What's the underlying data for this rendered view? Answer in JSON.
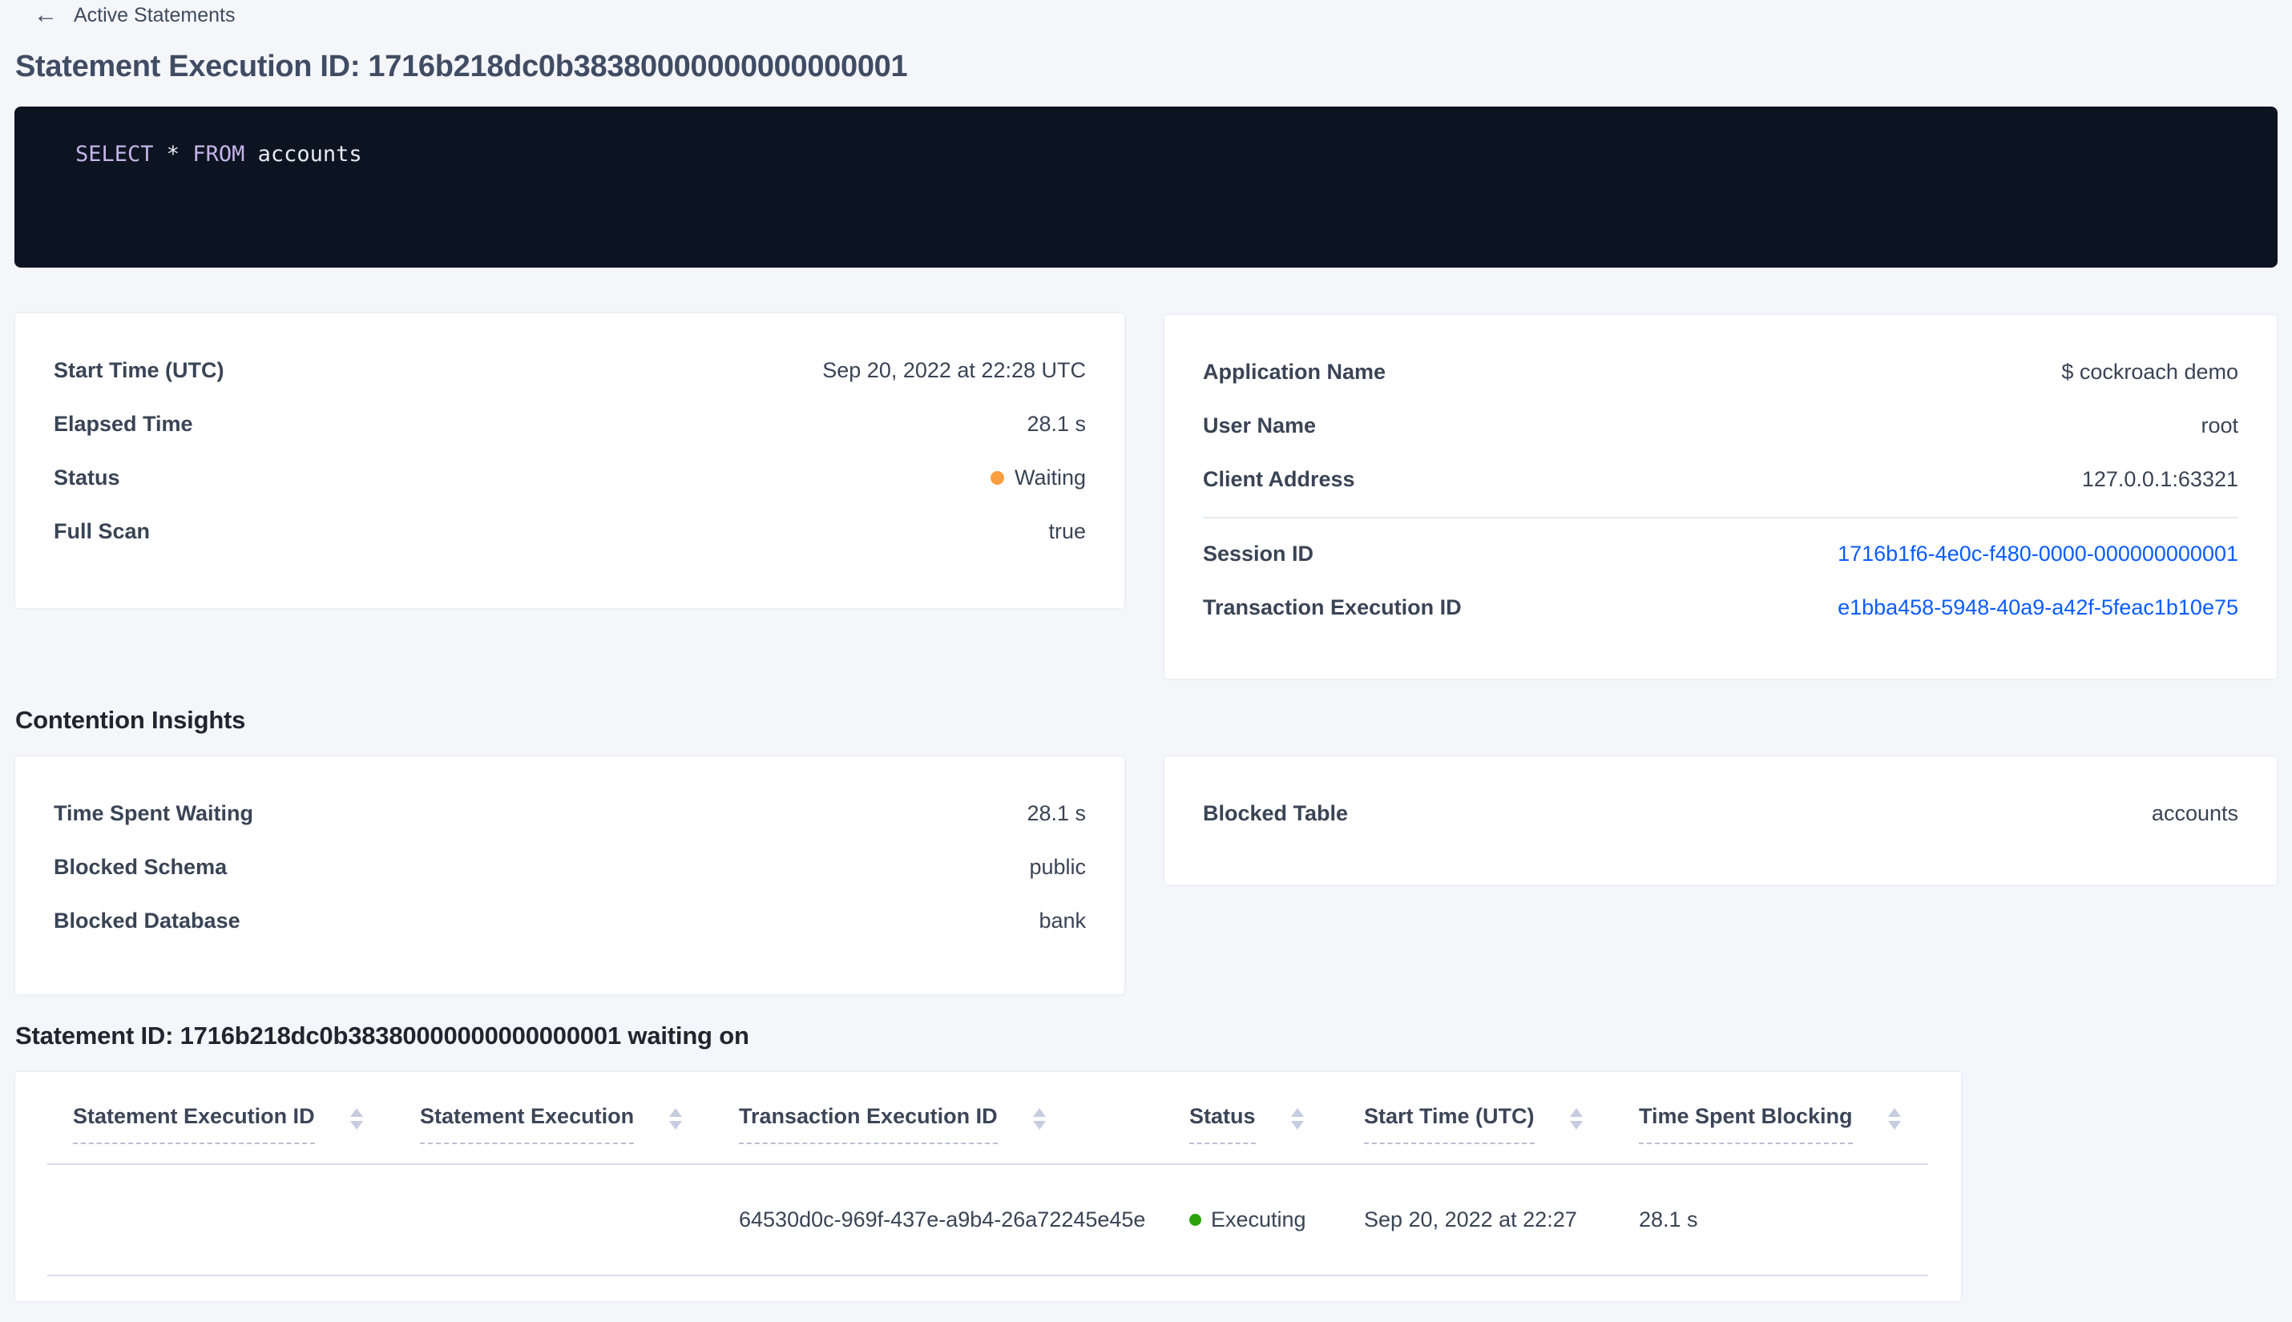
{
  "breadcrumb": {
    "back_label": "Active Statements"
  },
  "page": {
    "title": "Statement Execution ID: 1716b218dc0b38380000000000000001"
  },
  "sql": {
    "select": "SELECT",
    "star": " * ",
    "from": "FROM",
    "table": " accounts"
  },
  "execution_details": {
    "rows": [
      {
        "label": "Start Time (UTC)",
        "value": "Sep 20, 2022 at 22:28 UTC"
      },
      {
        "label": "Elapsed Time",
        "value": "28.1 s"
      },
      {
        "label": "Status",
        "value": "Waiting"
      },
      {
        "label": "Full Scan",
        "value": "true"
      }
    ]
  },
  "session_details": {
    "rows": [
      {
        "label": "Application Name",
        "value": "$ cockroach demo"
      },
      {
        "label": "User Name",
        "value": "root"
      },
      {
        "label": "Client Address",
        "value": "127.0.0.1:63321"
      }
    ],
    "link_rows": [
      {
        "label": "Session ID",
        "value": "1716b1f6-4e0c-f480-0000-000000000001"
      },
      {
        "label": "Transaction Execution ID",
        "value": "e1bba458-5948-40a9-a42f-5feac1b10e75"
      }
    ]
  },
  "contention": {
    "heading": "Contention Insights",
    "waiting_rows": [
      {
        "label": "Time Spent Waiting",
        "value": "28.1 s"
      },
      {
        "label": "Blocked Schema",
        "value": "public"
      },
      {
        "label": "Blocked Database",
        "value": "bank"
      }
    ],
    "blocked_rows": [
      {
        "label": "Blocked Table",
        "value": "accounts"
      }
    ]
  },
  "waiting_on": {
    "heading": "Statement ID: 1716b218dc0b38380000000000000001 waiting on",
    "columns": [
      "Statement Execution ID",
      "Statement Execution",
      "Transaction Execution ID",
      "Status",
      "Start Time (UTC)",
      "Time Spent Blocking"
    ],
    "rows": [
      {
        "statement_execution_id": "",
        "statement_execution": "",
        "transaction_execution_id": "64530d0c-969f-437e-a9b4-26a72245e45e",
        "status": "Executing",
        "start_time": "Sep 20, 2022 at 22:27",
        "time_spent_blocking": "28.1 s"
      }
    ]
  },
  "colors": {
    "status_waiting": "#fb9e3f",
    "status_executing": "#2aa30a",
    "link": "#0a5cff"
  }
}
